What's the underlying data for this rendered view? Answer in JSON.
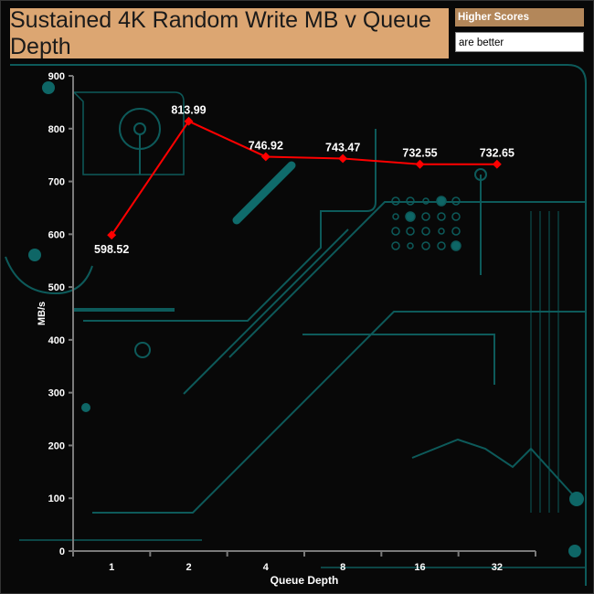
{
  "header": {
    "title": "Sustained 4K Random Write MB v Queue Depth",
    "legend_line1": "Higher Scores",
    "legend_line2": "are better"
  },
  "chart_data": {
    "type": "line",
    "title": "Sustained 4K Random Write MB v Queue Depth",
    "xlabel": "Queue Depth",
    "ylabel": "MB/s",
    "categories": [
      "1",
      "2",
      "4",
      "8",
      "16",
      "32"
    ],
    "values": [
      598.52,
      813.99,
      746.92,
      743.47,
      732.55,
      732.65
    ],
    "data_labels": [
      "598.52",
      "813.99",
      "746.92",
      "743.47",
      "732.55",
      "732.65"
    ],
    "ylim": [
      0,
      900
    ],
    "yticks": [
      "0",
      "100",
      "200",
      "300",
      "400",
      "500",
      "600",
      "700",
      "800",
      "900"
    ],
    "grid": false,
    "legend": "none",
    "colors": {
      "line": "#ff0000",
      "axis": "#7a7a7a",
      "background": "#080808",
      "circuit": "#0e5f5f"
    }
  }
}
